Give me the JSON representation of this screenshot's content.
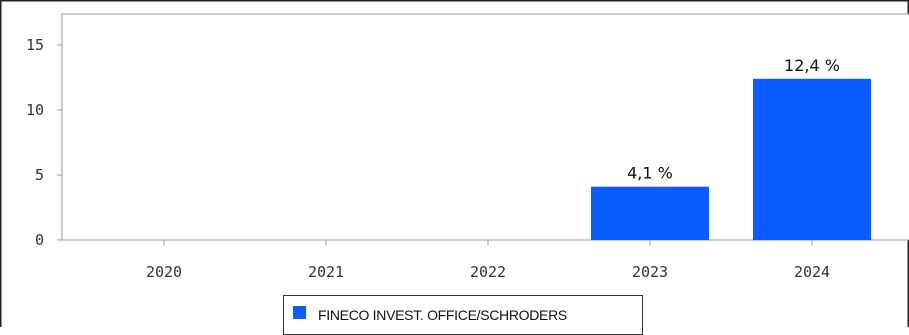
{
  "chart_data": {
    "type": "bar",
    "categories": [
      "2020",
      "2021",
      "2022",
      "2023",
      "2024"
    ],
    "series": [
      {
        "name": "FINECO INVEST. OFFICE/SCHRODERS",
        "values": [
          null,
          null,
          null,
          4.1,
          12.4
        ],
        "color": "#0a5cff"
      }
    ],
    "data_labels": [
      "",
      "",
      "",
      "4,1 %",
      "12,4 %"
    ],
    "ylim": [
      0,
      17
    ],
    "yticks": [
      0,
      5,
      10,
      15
    ],
    "ytick_labels": [
      "0",
      "5",
      "10",
      "15"
    ],
    "grid": false,
    "legend_position": "bottom"
  }
}
